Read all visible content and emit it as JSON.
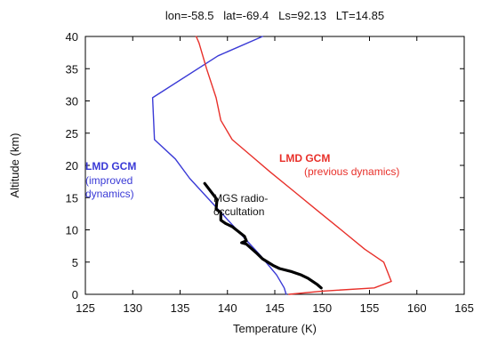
{
  "chart_data": {
    "type": "line",
    "title": "lon=-58.5   lat=-69.4   Ls=92.13   LT=14.85",
    "xlabel": "Temperature (K)",
    "ylabel": "Altitude (km)",
    "xlim": [
      125,
      165
    ],
    "ylim": [
      0,
      40
    ],
    "xticks": [
      125,
      130,
      135,
      140,
      145,
      150,
      155,
      160,
      165
    ],
    "yticks": [
      0,
      5,
      10,
      15,
      20,
      25,
      30,
      35,
      40
    ],
    "grid": false,
    "legend": "none",
    "series": [
      {
        "color": "#3a3ad6",
        "points": [
          [
            146.2,
            0
          ],
          [
            146.0,
            1
          ],
          [
            145.2,
            3
          ],
          [
            143.5,
            6
          ],
          [
            141.0,
            10
          ],
          [
            138.5,
            14
          ],
          [
            136.0,
            18
          ],
          [
            134.5,
            21
          ],
          [
            132.3,
            24
          ],
          [
            132.1,
            30.5
          ],
          [
            139.0,
            37
          ],
          [
            143.7,
            40
          ]
        ]
      },
      {
        "color": "#e8302a",
        "points": [
          [
            146.5,
            0
          ],
          [
            150.0,
            0.5
          ],
          [
            155.5,
            1
          ],
          [
            157.3,
            2
          ],
          [
            156.5,
            5
          ],
          [
            154.5,
            7
          ],
          [
            152.0,
            10
          ],
          [
            149.5,
            13
          ],
          [
            147.0,
            16
          ],
          [
            144.5,
            19
          ],
          [
            142.5,
            21.5
          ],
          [
            140.5,
            24
          ],
          [
            139.3,
            27
          ],
          [
            138.8,
            30.5
          ],
          [
            137.8,
            35
          ],
          [
            137.0,
            39
          ],
          [
            136.7,
            40
          ]
        ]
      },
      {
        "color": "#000000",
        "points": [
          [
            149.9,
            1.0
          ],
          [
            149.5,
            1.5
          ],
          [
            148.5,
            2.5
          ],
          [
            147.8,
            3.0
          ],
          [
            146.8,
            3.5
          ],
          [
            145.5,
            4.0
          ],
          [
            144.8,
            4.5
          ],
          [
            143.7,
            5.5
          ],
          [
            143.0,
            6.5
          ],
          [
            142.0,
            7.8
          ],
          [
            141.5,
            8.0
          ],
          [
            142.0,
            8.3
          ],
          [
            141.8,
            9.0
          ],
          [
            140.5,
            10.5
          ],
          [
            139.8,
            11.0
          ],
          [
            139.3,
            11.5
          ],
          [
            139.3,
            12.7
          ],
          [
            138.8,
            13.2
          ],
          [
            138.9,
            14.7
          ],
          [
            137.6,
            17.2
          ]
        ]
      }
    ],
    "annotations": [
      {
        "lines": [
          "LMD GCM"
        ],
        "color": "#3a3ad6",
        "bold": true
      },
      {
        "lines": [
          "(improved",
          "dynamics)"
        ],
        "color": "#3a3ad6",
        "bold": false
      },
      {
        "lines": [
          "LMD GCM"
        ],
        "color": "#e8302a",
        "bold": true
      },
      {
        "lines": [
          "(previous dynamics)"
        ],
        "color": "#e8302a",
        "bold": false
      },
      {
        "lines": [
          "MGS radio-",
          "occultation"
        ],
        "color": "#111111",
        "bold": false
      }
    ]
  }
}
